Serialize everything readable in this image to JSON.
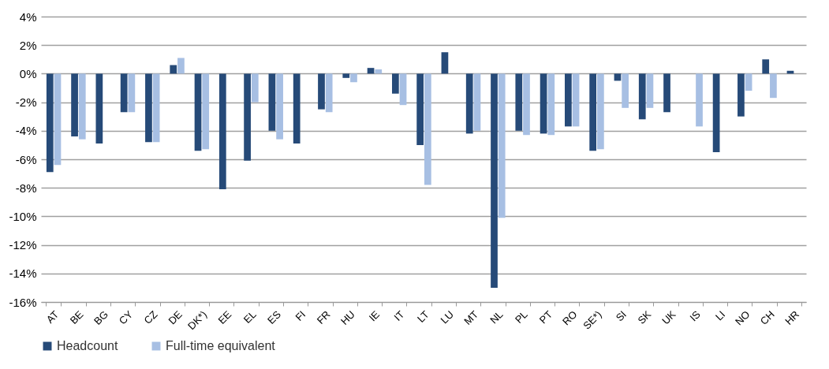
{
  "chart_data": {
    "type": "bar",
    "categories": [
      "AT",
      "BE",
      "BG",
      "CY",
      "CZ",
      "DE",
      "DK*)",
      "EE",
      "EL",
      "ES",
      "FI",
      "FR",
      "HU",
      "IE",
      "IT",
      "LT",
      "LU",
      "MT",
      "NL",
      "PL",
      "PT",
      "RO",
      "SE*)",
      "SI",
      "SK",
      "UK",
      "IS",
      "LI",
      "NO",
      "CH",
      "HR"
    ],
    "series": [
      {
        "name": "Headcount",
        "color": "#264a78",
        "values": [
          -6.9,
          -4.4,
          -4.9,
          -2.7,
          -4.8,
          0.6,
          -5.4,
          -8.1,
          -6.1,
          -4.0,
          -4.9,
          -2.5,
          -0.3,
          0.4,
          -1.4,
          -5.0,
          1.5,
          -4.2,
          -15.0,
          -4.0,
          -4.2,
          -3.7,
          -5.4,
          -0.5,
          -3.2,
          -2.7,
          null,
          -5.5,
          -3.0,
          1.0,
          0.2
        ]
      },
      {
        "name": "Full-time equivalent",
        "color": "#a7bfe3",
        "values": [
          -6.4,
          -4.6,
          null,
          -2.7,
          -4.8,
          1.1,
          -5.3,
          null,
          -2.0,
          -4.6,
          null,
          -2.7,
          -0.6,
          0.3,
          -2.2,
          -7.8,
          null,
          -4.0,
          -10.1,
          -4.3,
          -4.3,
          -3.7,
          -5.3,
          -2.4,
          -2.4,
          null,
          -3.7,
          null,
          -1.2,
          -1.7,
          null
        ]
      }
    ],
    "ylim": [
      -16,
      4
    ],
    "yticks": [
      {
        "value": -16,
        "label": "-16%"
      },
      {
        "value": -14,
        "label": "-14%"
      },
      {
        "value": -12,
        "label": "-12%"
      },
      {
        "value": -10,
        "label": "-10%"
      },
      {
        "value": -8,
        "label": "-8%"
      },
      {
        "value": -6,
        "label": "-6%"
      },
      {
        "value": -4,
        "label": "-4%"
      },
      {
        "value": -2,
        "label": "-2%"
      },
      {
        "value": 0,
        "label": "0%"
      },
      {
        "value": 2,
        "label": "2%"
      },
      {
        "value": 4,
        "label": "4%"
      }
    ],
    "grid": "y",
    "legend": "bottom"
  }
}
